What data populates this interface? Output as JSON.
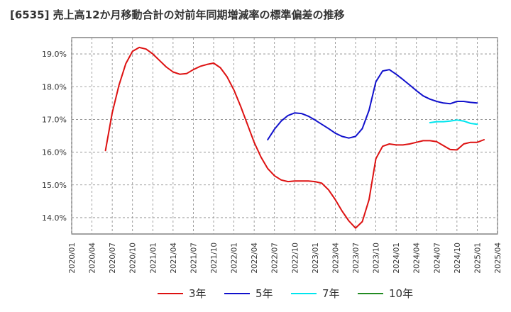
{
  "chart_data": {
    "type": "line",
    "title": "[6535]  売上高12か月移動合計の対前年同期増減率の標準偏差の推移",
    "xlabel": "",
    "ylabel": "",
    "ylim": [
      13.5,
      19.5
    ],
    "yticks": [
      14.0,
      15.0,
      16.0,
      17.0,
      18.0,
      19.0
    ],
    "ytick_labels": [
      "14.0%",
      "15.0%",
      "16.0%",
      "17.0%",
      "18.0%",
      "19.0%"
    ],
    "x_start": "2020-01",
    "x_end": "2025-04",
    "xtick_labels": [
      "2020/01",
      "2020/04",
      "2020/07",
      "2020/10",
      "2021/01",
      "2021/04",
      "2021/07",
      "2021/10",
      "2022/01",
      "2022/04",
      "2022/07",
      "2022/10",
      "2023/01",
      "2023/04",
      "2023/07",
      "2023/10",
      "2024/01",
      "2024/04",
      "2024/07",
      "2024/10",
      "2025/01",
      "2025/04"
    ],
    "grid": true,
    "series": [
      {
        "name": "3年",
        "color": "#dd1111",
        "start": "2020-06",
        "values": [
          16.05,
          17.2,
          18.05,
          18.7,
          19.08,
          19.2,
          19.15,
          19.0,
          18.8,
          18.6,
          18.45,
          18.38,
          18.4,
          18.52,
          18.62,
          18.68,
          18.72,
          18.58,
          18.3,
          17.9,
          17.4,
          16.85,
          16.3,
          15.85,
          15.5,
          15.28,
          15.15,
          15.1,
          15.12,
          15.12,
          15.12,
          15.1,
          15.05,
          14.85,
          14.55,
          14.2,
          13.9,
          13.68,
          13.88,
          14.55,
          15.8,
          16.18,
          16.25,
          16.22,
          16.22,
          16.25,
          16.3,
          16.35,
          16.35,
          16.32,
          16.2,
          16.08,
          16.07,
          16.25,
          16.3,
          16.3,
          16.38
        ]
      },
      {
        "name": "5年",
        "color": "#1111cc",
        "start": "2022-06",
        "values": [
          16.38,
          16.7,
          16.95,
          17.12,
          17.2,
          17.18,
          17.1,
          16.98,
          16.85,
          16.72,
          16.58,
          16.48,
          16.43,
          16.48,
          16.72,
          17.28,
          18.15,
          18.48,
          18.52,
          18.38,
          18.22,
          18.05,
          17.88,
          17.72,
          17.62,
          17.55,
          17.5,
          17.48,
          17.55,
          17.55,
          17.52,
          17.5
        ]
      },
      {
        "name": "7年",
        "color": "#00e5ee",
        "start": "2024-06",
        "values": [
          16.9,
          16.93,
          16.93,
          16.95,
          16.98,
          16.95,
          16.88,
          16.85
        ]
      },
      {
        "name": "10年",
        "color": "#228b22",
        "start": "2025-01",
        "values": []
      }
    ]
  }
}
